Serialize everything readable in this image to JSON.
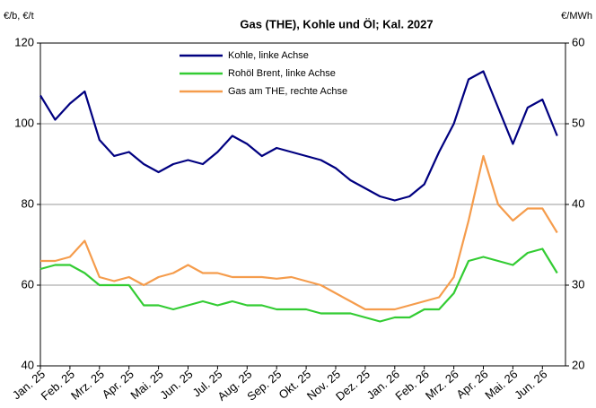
{
  "chart_data": {
    "type": "line",
    "title": "Gas (THE), Kohle und Öl; Kal. 2027",
    "ylabel": "€/b, €/t",
    "y2label": "€/MWh",
    "categories": [
      "Jan. 25",
      null,
      "Feb. 25",
      null,
      "Mrz. 25",
      null,
      "Apr. 25",
      null,
      "Mai. 25",
      null,
      "Jun. 25",
      null,
      "Jul. 25",
      null,
      "Aug. 25",
      null,
      "Sep. 25",
      null,
      "Okt. 25",
      null,
      "Nov. 25",
      null,
      "Dez. 25",
      null,
      "Jan. 26",
      null,
      "Feb. 26",
      null,
      "Mrz. 26",
      null,
      "Apr. 26",
      null,
      "Mai. 26",
      null,
      "Jun. 26",
      null
    ],
    "series": [
      {
        "name": "Kohle, linke Achse",
        "color": "#000080",
        "values": [
          107,
          101,
          105,
          108,
          96,
          92,
          93,
          90,
          88,
          90,
          91,
          90,
          93,
          97,
          95,
          92,
          94,
          93,
          92,
          91,
          89,
          86,
          84,
          82,
          81,
          82,
          85,
          93,
          100,
          111,
          113,
          104,
          95,
          104,
          106,
          97
        ]
      },
      {
        "name": "Rohöl Brent, linke Achse",
        "color": "#33cc33",
        "values": [
          64,
          65,
          65,
          63,
          60,
          60,
          60,
          55,
          55,
          54,
          55,
          56,
          55,
          56,
          55,
          55,
          54,
          54,
          54,
          53,
          53,
          53,
          52,
          51,
          52,
          52,
          54,
          54,
          58,
          66,
          67,
          66,
          65,
          68,
          69,
          63
        ]
      },
      {
        "name": "Gas am THE, rechte Achse",
        "color": "#f59c4c",
        "axis": "y2",
        "values": [
          33,
          33,
          33.5,
          35.5,
          31,
          30.5,
          31,
          30,
          31,
          31.5,
          32.5,
          31.5,
          31.5,
          31,
          31,
          31,
          30.8,
          31,
          30.5,
          30,
          29,
          28,
          27,
          27,
          27,
          27.5,
          28,
          28.5,
          31,
          38,
          46,
          40,
          38,
          39.5,
          39.5,
          36.5
        ]
      }
    ],
    "ylim": [
      40,
      120
    ],
    "yticks": [
      40,
      60,
      80,
      100,
      120
    ],
    "y2lim": [
      20,
      60
    ],
    "y2ticks": [
      20,
      30,
      40,
      50,
      60
    ],
    "grid": true,
    "legend": "top"
  }
}
